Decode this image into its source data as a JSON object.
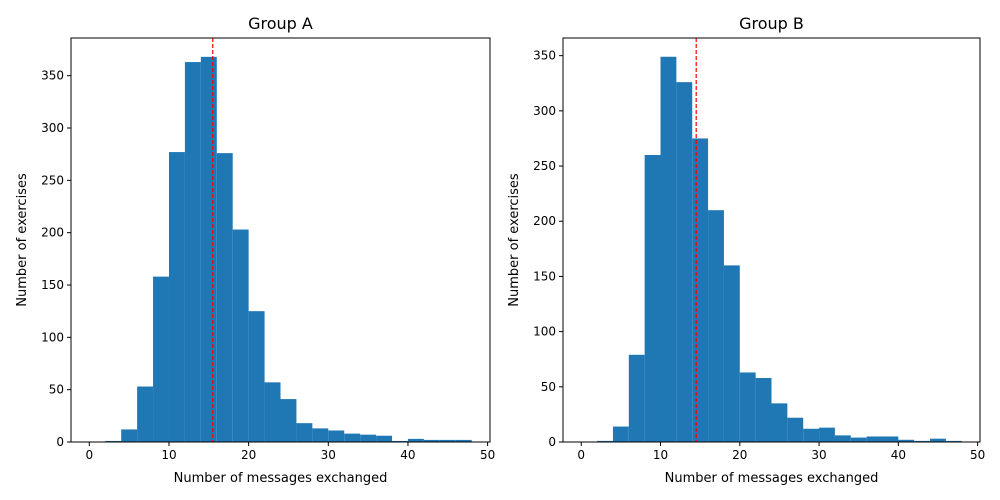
{
  "chart_data": [
    {
      "type": "bar",
      "title": "Group A",
      "xlabel": "Number of messages exchanged",
      "ylabel": "Number of exercises",
      "xlim": [
        -2.3,
        50.3
      ],
      "ylim": [
        0,
        386
      ],
      "xticks": [
        0,
        10,
        20,
        30,
        40,
        50
      ],
      "yticks": [
        0,
        50,
        100,
        150,
        200,
        250,
        300,
        350
      ],
      "bin_edges": [
        0,
        2,
        4,
        6,
        8,
        10,
        12,
        14,
        16,
        18,
        20,
        22,
        24,
        26,
        28,
        30,
        32,
        34,
        36,
        38,
        40,
        42,
        44,
        46,
        48
      ],
      "values": [
        0,
        1,
        12,
        53,
        158,
        277,
        363,
        368,
        276,
        203,
        125,
        57,
        41,
        18,
        13,
        11,
        8,
        7,
        6,
        1,
        3,
        2,
        2,
        2
      ],
      "bar_color": "#1f77b4",
      "mean_line": {
        "x": 15.5,
        "color": "#ff0000",
        "style": "dashed"
      },
      "grid": false,
      "legend": "none"
    },
    {
      "type": "bar",
      "title": "Group B",
      "xlabel": "Number of messages exchanged",
      "ylabel": "Number of exercises",
      "xlim": [
        -2.3,
        50.3
      ],
      "ylim": [
        0,
        366
      ],
      "xticks": [
        0,
        10,
        20,
        30,
        40,
        50
      ],
      "yticks": [
        0,
        50,
        100,
        150,
        200,
        250,
        300,
        350
      ],
      "bin_edges": [
        0,
        2,
        4,
        6,
        8,
        10,
        12,
        14,
        16,
        18,
        20,
        22,
        24,
        26,
        28,
        30,
        32,
        34,
        36,
        38,
        40,
        42,
        44,
        46,
        48
      ],
      "values": [
        0,
        1,
        14,
        79,
        260,
        349,
        326,
        275,
        210,
        160,
        63,
        58,
        35,
        22,
        12,
        13,
        6,
        4,
        5,
        5,
        2,
        1,
        3,
        1
      ],
      "bar_color": "#1f77b4",
      "mean_line": {
        "x": 14.5,
        "color": "#ff0000",
        "style": "dashed"
      },
      "grid": false,
      "legend": "none"
    }
  ]
}
